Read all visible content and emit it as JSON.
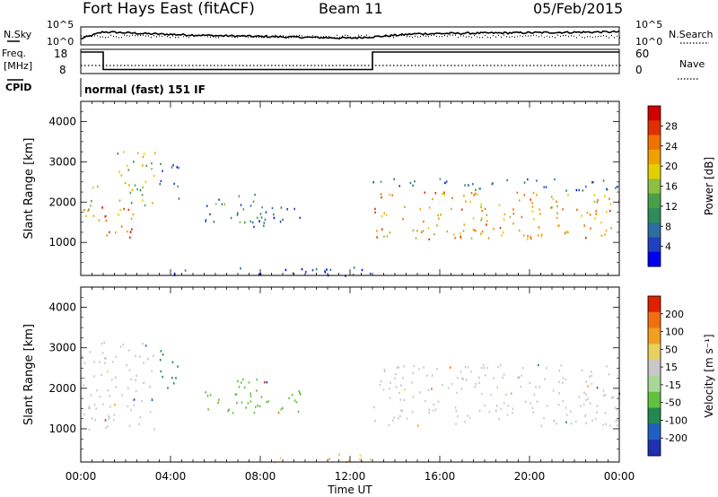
{
  "header": {
    "title": "Fort Hays East (fitACF)",
    "beam": "Beam 11",
    "date": "05/Feb/2015"
  },
  "top_panels": {
    "nsky_label": "N.Sky",
    "nsearch_label": "N.Search",
    "nsky_ticks": [
      "10^5",
      "10^0"
    ],
    "nsearch_ticks": [
      "10^5",
      "10^0"
    ],
    "freq_label_line1": "Freq.",
    "freq_label_line2": "[MHz]",
    "freq_ticks": [
      "18",
      "8"
    ],
    "nave_label": "Nave",
    "nave_ticks": [
      "60",
      "0"
    ],
    "cpid_label": "CPID",
    "cpid_text": "normal (fast) 151 IF"
  },
  "power_colorbar": {
    "label": "Power [dB]",
    "ticks": [
      "28",
      "24",
      "20",
      "16",
      "12",
      "8",
      "4"
    ],
    "colors": [
      "#0000ee",
      "#2040c0",
      "#2d6e9e",
      "#2f8c5a",
      "#4aa04a",
      "#8dc040",
      "#e0d000",
      "#f0a000",
      "#f07000",
      "#e03000",
      "#d00000"
    ]
  },
  "velocity_colorbar": {
    "label": "Velocity [m s⁻¹]",
    "ticks": [
      "200",
      "100",
      "50",
      "15",
      "-15",
      "-50",
      "-100",
      "-200"
    ],
    "colors": [
      "#2030b0",
      "#2060c0",
      "#208a50",
      "#60c040",
      "#a8d898",
      "#c8c8c8",
      "#e8d060",
      "#f0a020",
      "#f07010",
      "#e02000"
    ]
  },
  "chart_data": [
    {
      "type": "heatmap",
      "panel": "power",
      "ylabel": "Slant Range [km]",
      "yticks": [
        "4000",
        "3000",
        "2000",
        "1000"
      ],
      "ylim": [
        180,
        4500
      ],
      "xlim_hours": [
        0,
        24
      ],
      "regions": [
        {
          "t0": 0.0,
          "t1": 0.9,
          "r0": 1500,
          "r1": 2500,
          "level": 6
        },
        {
          "t0": 0.9,
          "t1": 2.4,
          "r0": 1000,
          "r1": 2000,
          "level": 8
        },
        {
          "t0": 1.6,
          "t1": 3.3,
          "r0": 1600,
          "r1": 3300,
          "level": 5
        },
        {
          "t0": 3.5,
          "t1": 4.5,
          "r0": 2000,
          "r1": 3000,
          "level": 2
        },
        {
          "t0": 5.5,
          "t1": 8.5,
          "r0": 1500,
          "r1": 2300,
          "level": 3
        },
        {
          "t0": 7.5,
          "t1": 10.0,
          "r0": 1400,
          "r1": 1900,
          "level": 2
        },
        {
          "t0": 13.0,
          "t1": 24.0,
          "r0": 1100,
          "r1": 2300,
          "level": 7
        },
        {
          "t0": 13.0,
          "t1": 24.0,
          "r0": 2300,
          "r1": 2600,
          "level": 2
        },
        {
          "t0": 4.0,
          "t1": 13.0,
          "r0": 180,
          "r1": 400,
          "level": 1
        }
      ]
    },
    {
      "type": "heatmap",
      "panel": "velocity",
      "ylabel": "Slant Range [km]",
      "yticks": [
        "4000",
        "3000",
        "2000",
        "1000"
      ],
      "ylim": [
        180,
        4500
      ],
      "xlim_hours": [
        0,
        24
      ],
      "xticks": [
        "00:00",
        "04:00",
        "08:00",
        "12:00",
        "16:00",
        "20:00",
        "00:00"
      ],
      "xlabel": "Time UT",
      "regions": [
        {
          "t0": 0.0,
          "t1": 3.3,
          "r0": 1000,
          "r1": 3200,
          "vel": "-15"
        },
        {
          "t0": 3.5,
          "t1": 4.5,
          "r0": 2000,
          "r1": 3000,
          "vel": "100"
        },
        {
          "t0": 5.5,
          "t1": 8.5,
          "r0": 1400,
          "r1": 2300,
          "vel": "50"
        },
        {
          "t0": 7.5,
          "t1": 10.0,
          "r0": 1400,
          "r1": 2000,
          "vel": "50"
        },
        {
          "t0": 13.0,
          "t1": 24.0,
          "r0": 1100,
          "r1": 2600,
          "vel": "-15"
        },
        {
          "t0": 8.0,
          "t1": 13.0,
          "r0": 180,
          "r1": 400,
          "vel": "-50"
        }
      ]
    }
  ],
  "nsky_trace": {
    "t": [
      0,
      1,
      3,
      6,
      9,
      12,
      13,
      15,
      18,
      21,
      24
    ],
    "y": [
      0.2,
      0.75,
      0.6,
      0.45,
      0.35,
      0.25,
      0.35,
      0.6,
      0.65,
      0.7,
      0.75
    ]
  },
  "freq_trace": {
    "t": [
      0,
      1.0,
      1.0,
      13.0,
      13.0,
      24
    ],
    "mhz": [
      18,
      18,
      8.7,
      8.7,
      18,
      18
    ]
  }
}
